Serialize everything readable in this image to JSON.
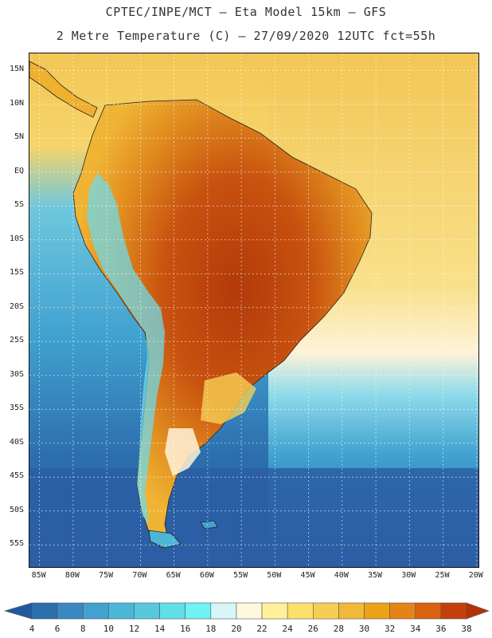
{
  "title_line1": "CPTEC/INPE/MCT –  Eta Model 15km – GFS",
  "title_line2": "2 Metre Temperature (C) – 27/09/2020 12UTC fct=55h",
  "lat_labels": [
    "15N",
    "10N",
    "5N",
    "EQ",
    "5S",
    "10S",
    "15S",
    "20S",
    "25S",
    "30S",
    "35S",
    "40S",
    "45S",
    "50S",
    "55S"
  ],
  "lon_labels": [
    "85W",
    "80W",
    "75W",
    "70W",
    "65W",
    "60W",
    "55W",
    "50W",
    "45W",
    "40W",
    "35W",
    "30W",
    "25W",
    "20W"
  ],
  "map_extent": {
    "lon": [
      -86.5,
      -19.5
    ],
    "lat": [
      -58.5,
      17.5
    ]
  },
  "colorbar": {
    "levels": [
      "4",
      "6",
      "8",
      "10",
      "12",
      "14",
      "16",
      "18",
      "20",
      "22",
      "24",
      "26",
      "28",
      "30",
      "32",
      "34",
      "36",
      "38"
    ],
    "colors": [
      "#1f5a9e",
      "#2c6fae",
      "#3a88c0",
      "#41a1d0",
      "#4cb6d8",
      "#58c8df",
      "#5fdfe8",
      "#6ff3f3",
      "#d8f5f8",
      "#fff8e0",
      "#fff09a",
      "#fbe06a",
      "#f6cf52",
      "#f0b93a",
      "#eca214",
      "#e48416",
      "#d9620f",
      "#c4400b",
      "#b23208"
    ]
  },
  "colors": {
    "ocean_south": "#2b5ea5",
    "ocean_mid": "#41a1d0",
    "ocean_warm": "#f6d46a",
    "land_hot": "#b8420c",
    "land_warm": "#e08a1e",
    "land_mild": "#efb030"
  }
}
